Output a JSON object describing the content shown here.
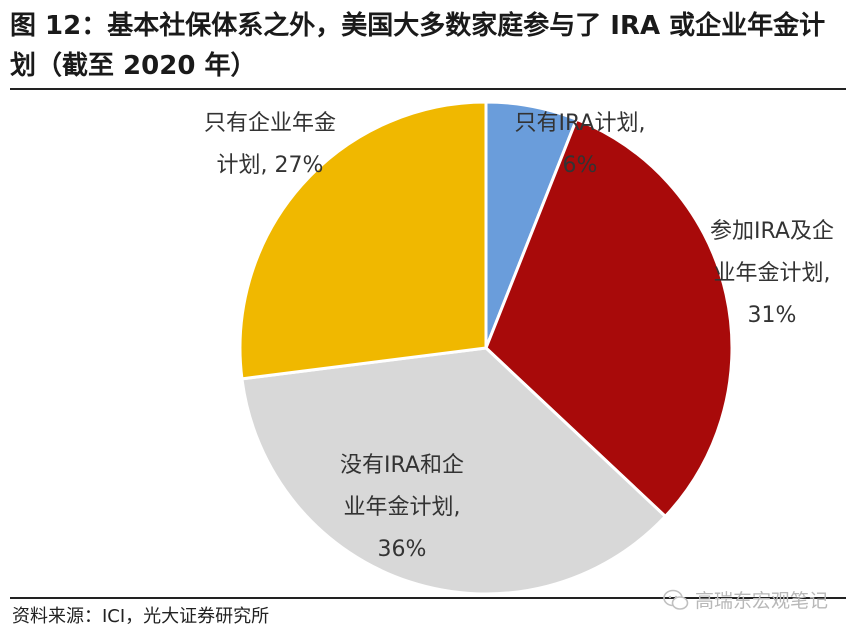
{
  "title": "图 12：基本社保体系之外，美国大多数家庭参与了 IRA 或企业年金计划（截至 2020 年）",
  "source": "资料来源：ICI，光大证券研究所",
  "watermark": "高瑞东宏观笔记",
  "chart_data": {
    "type": "pie",
    "title": "图 12：基本社保体系之外，美国大多数家庭参与了 IRA 或企业年金计划（截至 2020 年）",
    "start_angle_deg": 90,
    "direction": "clockwise",
    "slices": [
      {
        "label": "只有IRA计划",
        "value": 6,
        "display": [
          "只有IRA计划,",
          "6%"
        ],
        "color": "#6a9ddb"
      },
      {
        "label": "参加IRA及企业年金计划",
        "value": 31,
        "display": [
          "参加IRA及企",
          "业年金计划,",
          "31%"
        ],
        "color": "#a80a0a"
      },
      {
        "label": "没有IRA和企业年金计划",
        "value": 36,
        "display": [
          "没有IRA和企",
          "业年金计划,",
          "36%"
        ],
        "color": "#d8d8d8"
      },
      {
        "label": "只有企业年金计划",
        "value": 27,
        "display": [
          "只有企业年金",
          "计划, 27%"
        ],
        "color": "#f0b800"
      }
    ]
  }
}
